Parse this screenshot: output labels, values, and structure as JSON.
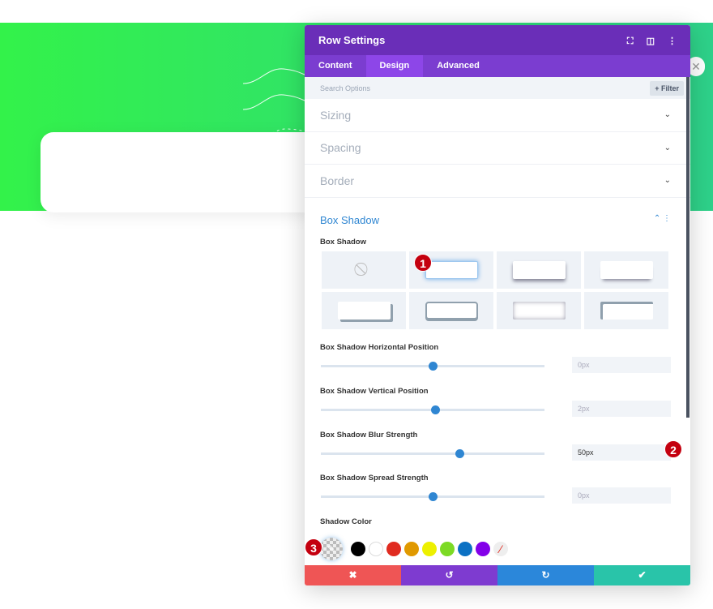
{
  "modal": {
    "title": "Row Settings",
    "tabs": [
      "Content",
      "Design",
      "Advanced"
    ],
    "active_tab": "Design",
    "search_placeholder": "Search Options",
    "filter_label": "+ Filter"
  },
  "sections": [
    "Sizing",
    "Spacing",
    "Border"
  ],
  "box_shadow": {
    "title": "Box Shadow",
    "label": "Box Shadow",
    "selected_preset": 2
  },
  "sliders": [
    {
      "label": "Box Shadow Horizontal Position",
      "value": "0px",
      "fraction": 0.5
    },
    {
      "label": "Box Shadow Vertical Position",
      "value": "2px",
      "fraction": 0.51
    },
    {
      "label": "Box Shadow Blur Strength",
      "value": "50px",
      "fraction": 0.62
    },
    {
      "label": "Box Shadow Spread Strength",
      "value": "0px",
      "fraction": 0.5
    }
  ],
  "shadow_color": {
    "label": "Shadow Color",
    "swatches": [
      "#000000",
      "#ffffff",
      "#e02b20",
      "#e09900",
      "#edf000",
      "#7cda24",
      "#0c71c3",
      "#8300e9"
    ]
  },
  "badges": [
    "1",
    "2",
    "3"
  ],
  "colors": {
    "header": "#6a2eb8",
    "tabs": "#7b3dd0",
    "accent": "#2f86d2",
    "cancel": "#ef5555",
    "undo": "#7e3bd0",
    "redo": "#2b87da",
    "save": "#29c4a9"
  }
}
